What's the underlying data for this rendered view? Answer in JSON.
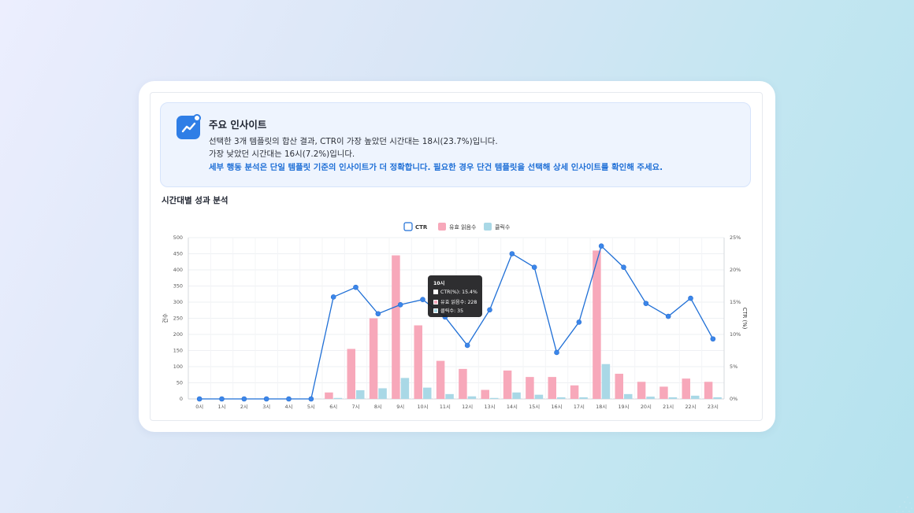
{
  "insight": {
    "title": "주요 인사이트",
    "line1": "선택한 3개 템플릿의 합산 결과, CTR이 가장 높았던 시간대는 18시(23.7%)입니다.",
    "line2": "가장 낮았던 시간대는 16시(7.2%)입니다.",
    "line3": "세부 행동 분석은 단일 템플릿 기준의 인사이트가 더 정확합니다. 필요한 경우 단건 템플릿을 선택해 상세 인사이트를 확인해 주세요.",
    "icon": "trend-up-icon"
  },
  "section_title": "시간대별 성과 분석",
  "tooltip": {
    "title": "10시",
    "rows": [
      {
        "label": "CTR(%):",
        "value": "15.4%"
      },
      {
        "label": "유효 읽음수:",
        "value": "228"
      },
      {
        "label": "클릭수:",
        "value": "35"
      }
    ]
  },
  "colors": {
    "ctr": "#1f6fd6",
    "reads": "#f7a8ba",
    "clicks": "#a9d8e6",
    "accent": "#2f7ee6"
  },
  "chart_data": {
    "type": "bar",
    "categories": [
      "0시",
      "1시",
      "2시",
      "3시",
      "4시",
      "5시",
      "6시",
      "7시",
      "8시",
      "9시",
      "10시",
      "11시",
      "12시",
      "13시",
      "14시",
      "15시",
      "16시",
      "17시",
      "18시",
      "19시",
      "20시",
      "21시",
      "22시",
      "23시"
    ],
    "series": [
      {
        "name": "유효 읽음수",
        "type": "bar",
        "axis": "left",
        "values": [
          0,
          0,
          0,
          0,
          0,
          0,
          20,
          155,
          250,
          445,
          228,
          118,
          93,
          28,
          88,
          68,
          68,
          42,
          460,
          78,
          53,
          38,
          63,
          53
        ]
      },
      {
        "name": "클릭수",
        "type": "bar",
        "axis": "left",
        "values": [
          0,
          0,
          0,
          0,
          0,
          0,
          3,
          27,
          33,
          65,
          35,
          15,
          8,
          3,
          20,
          13,
          5,
          5,
          108,
          15,
          7,
          5,
          10,
          5
        ]
      },
      {
        "name": "CTR",
        "type": "line",
        "axis": "right",
        "values": [
          0,
          0,
          0,
          0,
          0,
          0,
          15.8,
          17.3,
          13.2,
          14.6,
          15.4,
          12.7,
          8.3,
          13.8,
          22.5,
          20.4,
          7.2,
          11.9,
          23.7,
          20.4,
          14.8,
          12.8,
          15.6,
          9.3
        ]
      }
    ],
    "ylabel": "건수",
    "y2label": "CTR (%)",
    "ylim": [
      0,
      500
    ],
    "y2lim": [
      0,
      25
    ],
    "yticks": [
      "0",
      "50",
      "100",
      "150",
      "200",
      "250",
      "300",
      "350",
      "400",
      "450",
      "500"
    ],
    "y2ticks": [
      "0%",
      "5%",
      "10%",
      "15%",
      "20%",
      "25%"
    ],
    "legend": [
      "CTR",
      "유효 읽음수",
      "클릭수"
    ],
    "legend_position": "top-center",
    "grid": true
  }
}
